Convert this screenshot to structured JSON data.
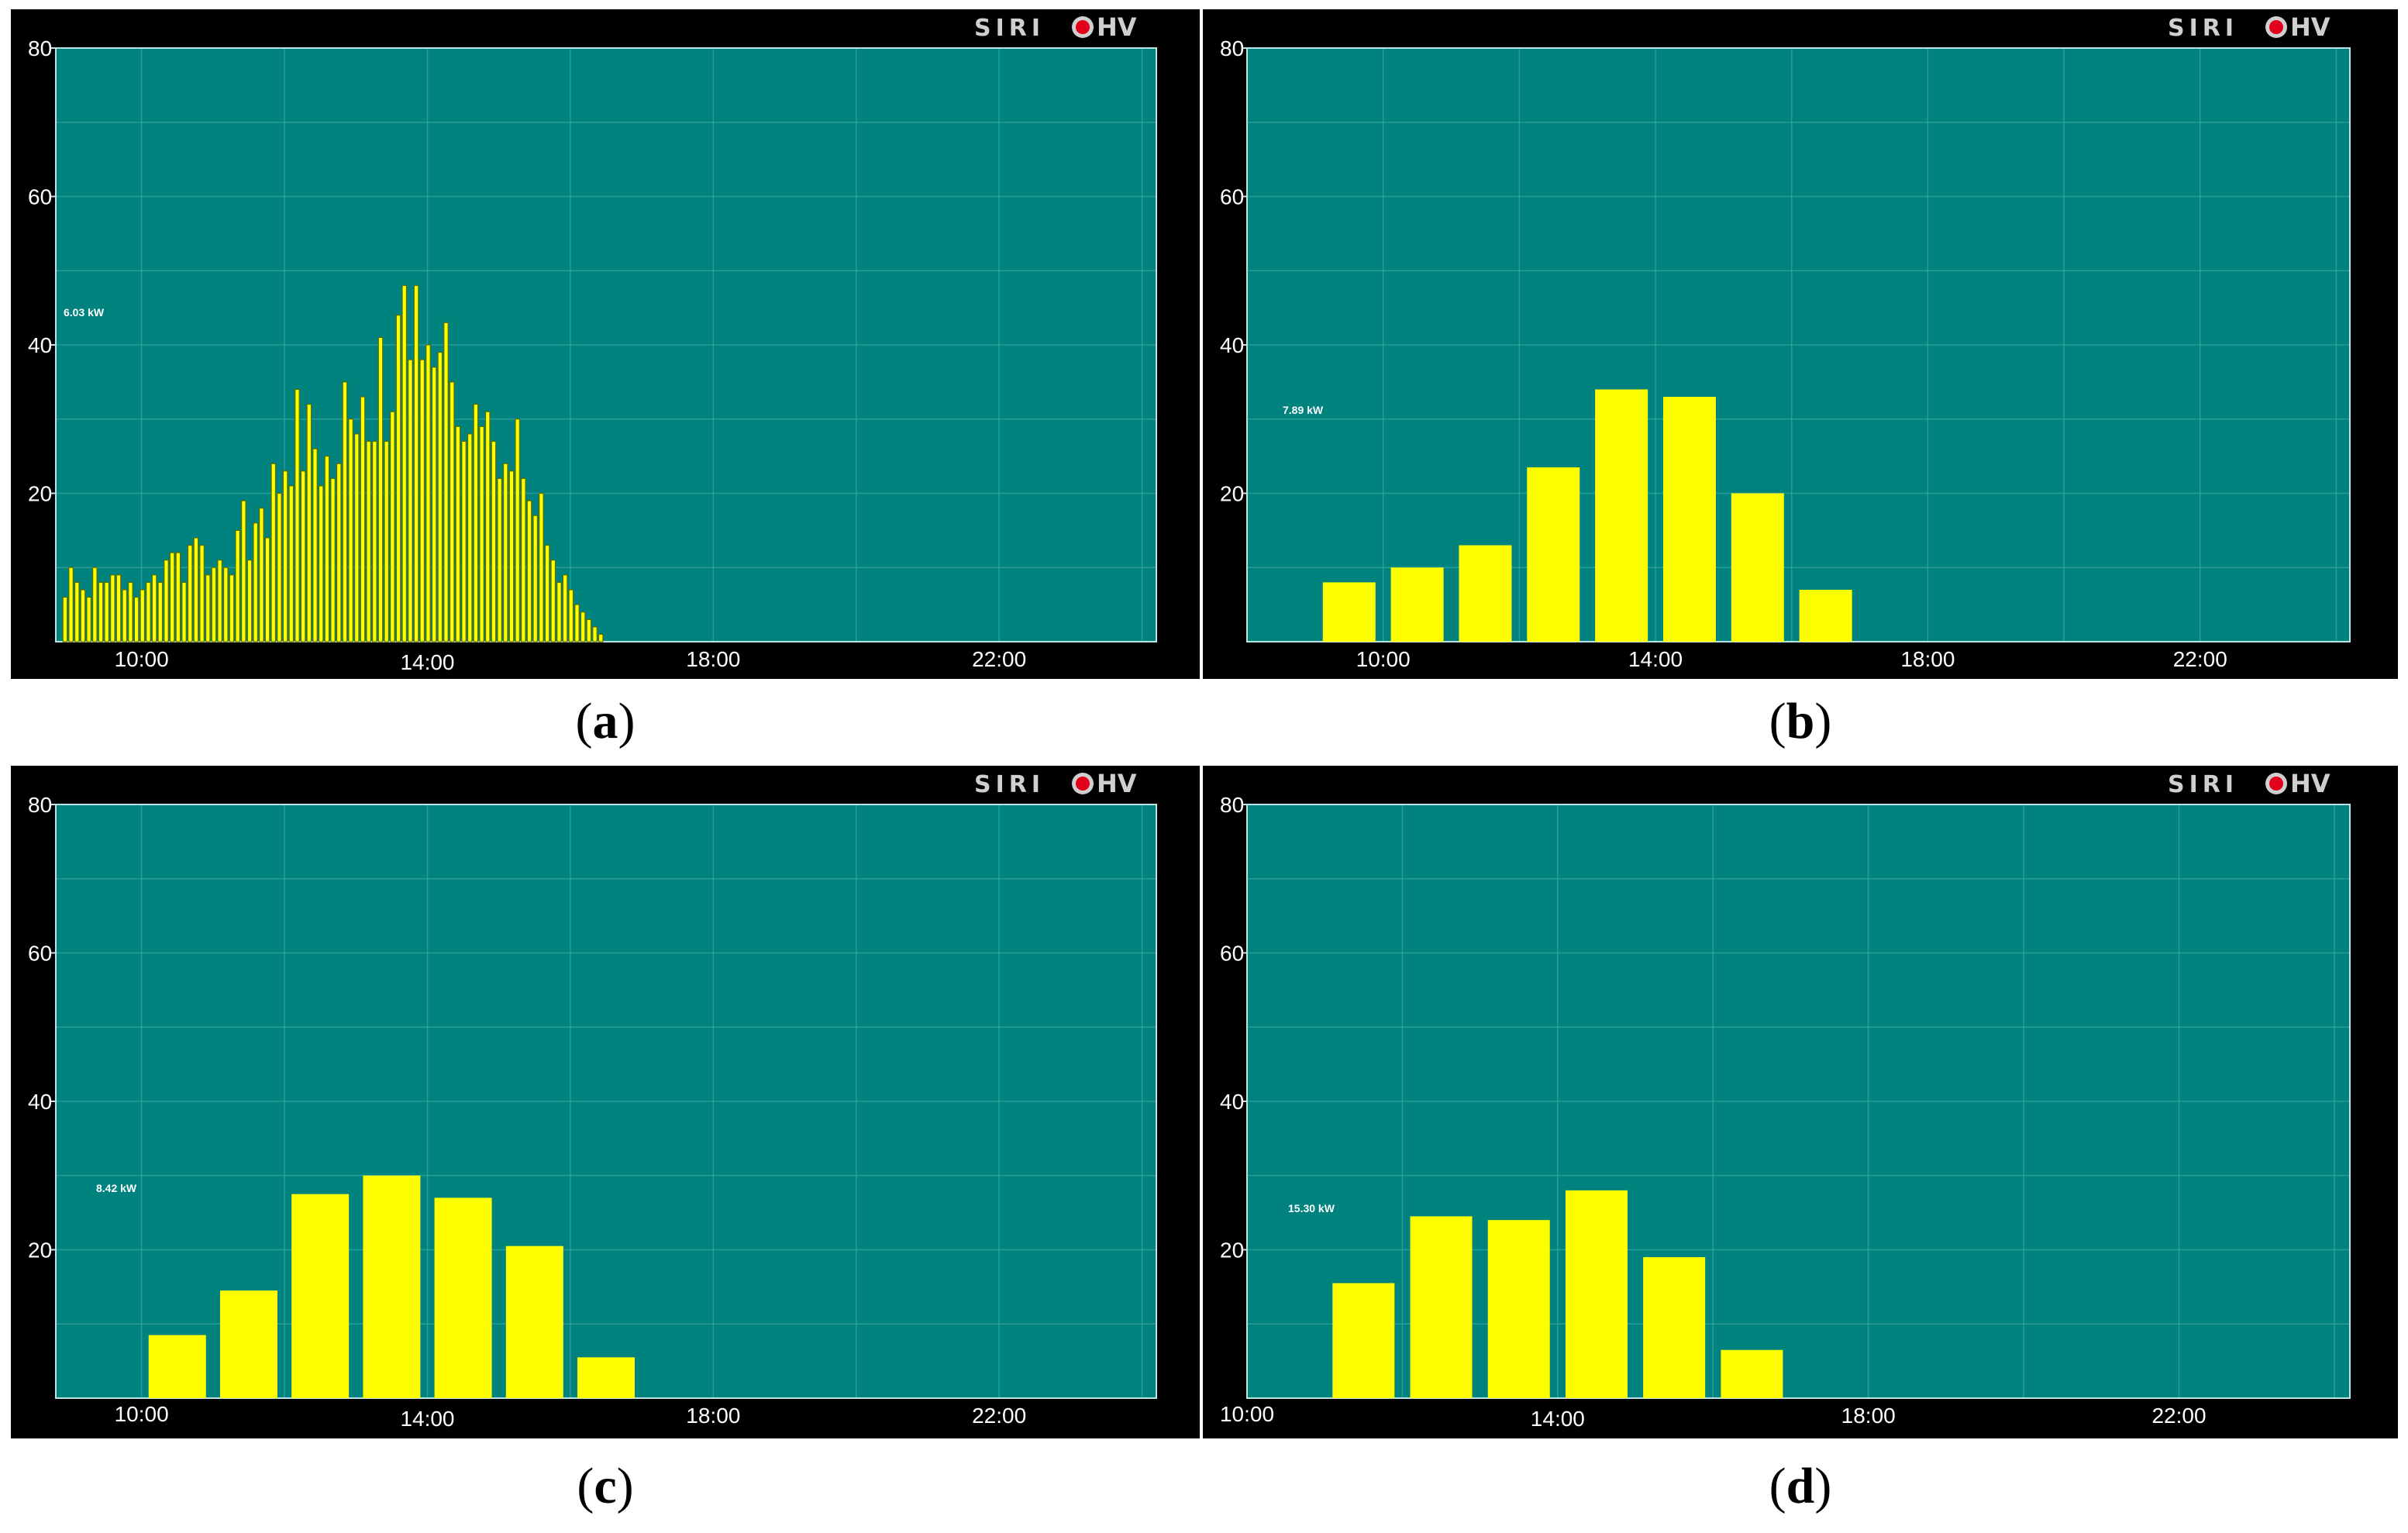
{
  "brand": {
    "left": "SIRI",
    "right": "HV",
    "dot_color": "#e2001a"
  },
  "colors": {
    "plot_bg": "#00827f",
    "panel_bg": "#000000",
    "bar": "#ffff00",
    "bar_dense_stroke": "#5c6d00",
    "grid": "#3aa6a3"
  },
  "chart_data": [
    {
      "id": "a",
      "type": "bar",
      "caption": {
        "open": "(",
        "letter": "a",
        "close": ")"
      },
      "ylim": [
        0,
        80
      ],
      "yticks": [
        "20",
        "40",
        "60",
        "80"
      ],
      "xticks": [
        "10:00",
        "14:00",
        "18:00",
        "22:00"
      ],
      "x_range_hours": [
        8.8,
        24.2
      ],
      "bar_start_hour": 8.9,
      "bar_step_hours": 0.0833,
      "annotation": "6.03 kW",
      "values": [
        6,
        10,
        8,
        7,
        6,
        10,
        8,
        8,
        9,
        9,
        7,
        8,
        6,
        7,
        8,
        9,
        8,
        11,
        12,
        12,
        8,
        13,
        14,
        13,
        9,
        10,
        11,
        10,
        9,
        15,
        19,
        11,
        16,
        18,
        14,
        24,
        20,
        23,
        21,
        34,
        23,
        32,
        26,
        21,
        25,
        22,
        24,
        35,
        30,
        28,
        33,
        27,
        27,
        41,
        27,
        31,
        44,
        48,
        38,
        48,
        38,
        40,
        37,
        39,
        43,
        35,
        29,
        27,
        28,
        32,
        29,
        31,
        27,
        22,
        24,
        23,
        30,
        22,
        19,
        17,
        20,
        13,
        11,
        8,
        9,
        7,
        5,
        4,
        3,
        2,
        1
      ]
    },
    {
      "id": "b",
      "type": "bar",
      "caption": {
        "open": "(",
        "letter": "b",
        "close": ")"
      },
      "ylim": [
        0,
        80
      ],
      "yticks": [
        "20",
        "40",
        "60",
        "80"
      ],
      "xticks": [
        "10:00",
        "14:00",
        "18:00",
        "22:00"
      ],
      "x_range_hours": [
        8.0,
        24.2
      ],
      "bar_start_hour": 9.0,
      "bar_step_hours": 1.0,
      "annotation": "7.89 kW",
      "values": [
        8,
        10,
        13,
        23.5,
        34,
        33,
        20,
        7
      ]
    },
    {
      "id": "c",
      "type": "bar",
      "caption": {
        "open": "(",
        "letter": "c",
        "close": ")"
      },
      "ylim": [
        0,
        80
      ],
      "yticks": [
        "20",
        "40",
        "60",
        "80"
      ],
      "xticks": [
        "10:00",
        "14:00",
        "18:00",
        "22:00"
      ],
      "x_range_hours": [
        8.8,
        24.2
      ],
      "bar_start_hour": 10.0,
      "bar_step_hours": 1.0,
      "annotation": "8.42 kW",
      "values": [
        8.5,
        14.5,
        27.5,
        30,
        27,
        20.5,
        5.5
      ]
    },
    {
      "id": "d",
      "type": "bar",
      "caption": {
        "open": "(",
        "letter": "d",
        "close": ")"
      },
      "ylim": [
        0,
        80
      ],
      "yticks": [
        "20",
        "40",
        "60",
        "80"
      ],
      "xticks": [
        "10:00",
        "14:00",
        "18:00",
        "22:00"
      ],
      "x_range_hours": [
        10.0,
        24.2
      ],
      "bar_start_hour": 11.0,
      "bar_step_hours": 1.0,
      "annotation": "15.30 kW",
      "values": [
        15.5,
        24.5,
        24,
        28,
        19,
        6.5
      ]
    }
  ]
}
